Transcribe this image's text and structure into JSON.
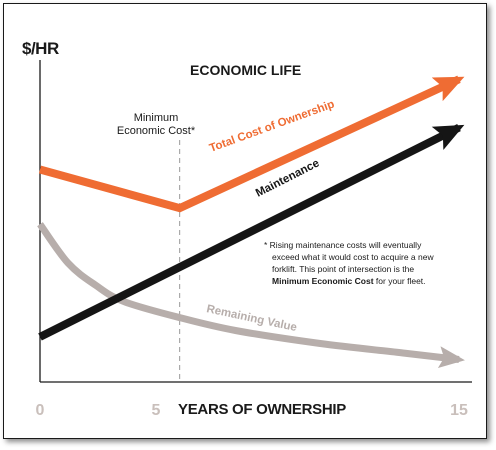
{
  "chart_data": {
    "type": "line",
    "title": "ECONOMIC LIFE",
    "ylabel": "$/HR",
    "xlabel": "YEARS OF OWNERSHIP",
    "x_ticks": [
      "0",
      "5",
      "15"
    ],
    "xlim": [
      0,
      15
    ],
    "grid": false,
    "series": [
      {
        "name": "Total Cost of Ownership",
        "color": "#ef6c33",
        "x": [
          0,
          5,
          15
        ],
        "y": [
          6.6,
          5.4,
          9.4
        ]
      },
      {
        "name": "Maintenance",
        "color": "#151515",
        "x": [
          0,
          15
        ],
        "y": [
          1.4,
          7.9
        ]
      },
      {
        "name": "Remaining Value",
        "color": "#b7aeab",
        "x": [
          0,
          1,
          2,
          3,
          5,
          7,
          10,
          13,
          15
        ],
        "y": [
          4.9,
          3.7,
          3.0,
          2.5,
          2.0,
          1.6,
          1.2,
          0.9,
          0.7
        ]
      }
    ],
    "annotations": {
      "minimum_line1": "Minimum",
      "minimum_line2": "Economic Cost*",
      "minimum_x": 5,
      "note_line1": "* Rising maintenance costs will eventually",
      "note_line2": "exceed what it would cost to acquire a new",
      "note_line3": "forklift. This point of intersection is the",
      "note_line4_strong": "Minimum Economic Cost",
      "note_line4_rest": " for your fleet."
    },
    "colors": {
      "axis": "#1a1a1a",
      "tick_label": "#c9bfbb",
      "dashed_line": "#9a9a9a"
    }
  }
}
